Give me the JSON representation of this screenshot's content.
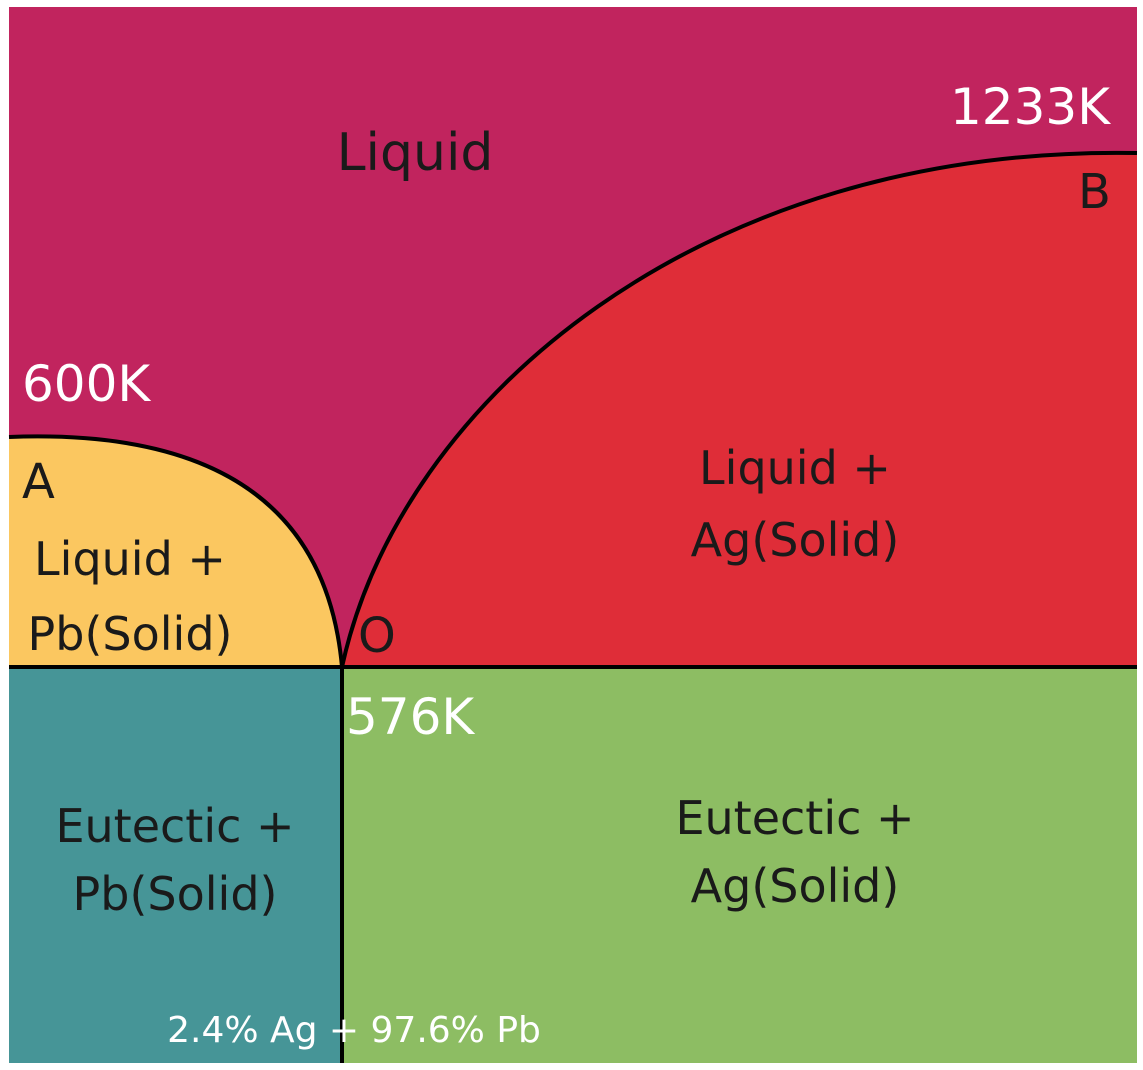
{
  "diagram": {
    "regions": {
      "liquid": "Liquid",
      "liquid_pb_line1": "Liquid +",
      "liquid_pb_line2": "Pb(Solid)",
      "liquid_ag_line1": "Liquid +",
      "liquid_ag_line2": "Ag(Solid)",
      "eutectic_pb_line1": "Eutectic +",
      "eutectic_pb_line2": "Pb(Solid)",
      "eutectic_ag_line1": "Eutectic +",
      "eutectic_ag_line2": "Ag(Solid)"
    },
    "points": {
      "a": "A",
      "b": "B",
      "o": "O"
    },
    "temperatures": {
      "pb_melting": "600K",
      "ag_melting": "1233K",
      "eutectic": "576K"
    },
    "composition": "2.4% Ag + 97.6% Pb",
    "colors": {
      "liquid": "#c1245e",
      "liquid_pb": "#fbc760",
      "liquid_ag": "#df2d38",
      "eutectic_pb": "#469597",
      "eutectic_ag": "#8dbd63",
      "line": "#000000",
      "white_text": "#ffffff",
      "dark_text": "#1a1a1a"
    }
  }
}
